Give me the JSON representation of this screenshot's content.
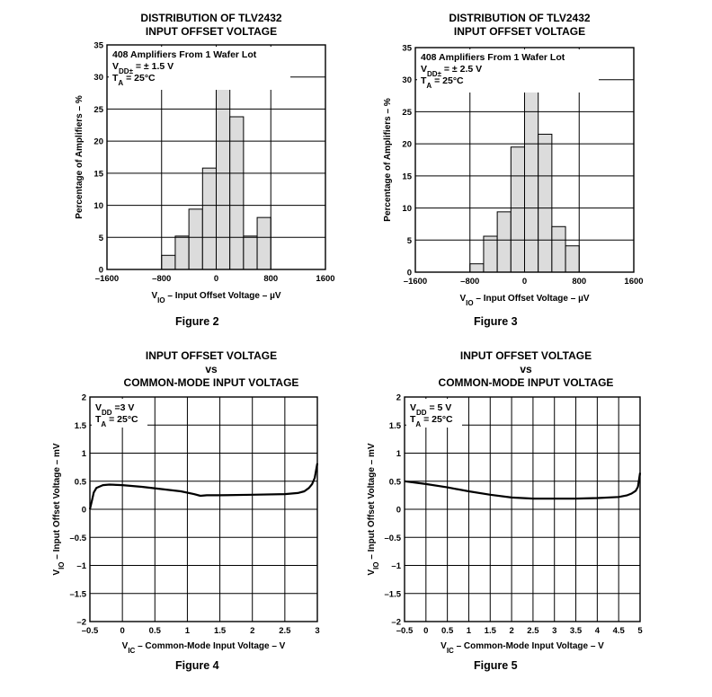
{
  "figures": [
    {
      "title_lines": [
        "DISTRIBUTION OF TLV2432",
        "INPUT OFFSET VOLTAGE"
      ],
      "caption": "Figure 2",
      "annotation_lines": [
        "408 Amplifiers From 1 Wafer Lot",
        "VDD± = ± 1.5 V",
        "TA = 25°C"
      ],
      "chart_data": {
        "type": "bar",
        "title": "DISTRIBUTION OF TLV2432 INPUT OFFSET VOLTAGE",
        "xlabel": "VIO – Input Offset Voltage – µV",
        "ylabel": "Percentage of Amplifiers – %",
        "xlim": [
          -1600,
          1600
        ],
        "ylim": [
          0,
          35
        ],
        "xticks": [
          "–1600",
          "–800",
          "0",
          "800",
          "1600"
        ],
        "yticks": [
          "0",
          "5",
          "10",
          "15",
          "20",
          "25",
          "30",
          "35"
        ],
        "bin_edges": [
          -800,
          -600,
          -400,
          -200,
          0,
          200,
          400,
          600,
          800
        ],
        "values": [
          2.2,
          5.2,
          9.4,
          15.8,
          30.7,
          23.8,
          5.2,
          8.1
        ],
        "grid": true
      }
    },
    {
      "title_lines": [
        "DISTRIBUTION OF TLV2432",
        "INPUT OFFSET VOLTAGE"
      ],
      "caption": "Figure 3",
      "annotation_lines": [
        "408 Amplifiers From 1 Wafer Lot",
        "VDD± = ± 2.5 V",
        "TA = 25°C"
      ],
      "chart_data": {
        "type": "bar",
        "title": "DISTRIBUTION OF TLV2432 INPUT OFFSET VOLTAGE",
        "xlabel": "VIO – Input Offset Voltage – µV",
        "ylabel": "Percentage of Amplifiers – %",
        "xlim": [
          -1600,
          1600
        ],
        "ylim": [
          0,
          35
        ],
        "xticks": [
          "–1600",
          "–800",
          "0",
          "800",
          "1600"
        ],
        "yticks": [
          "0",
          "5",
          "10",
          "15",
          "20",
          "25",
          "30",
          "35"
        ],
        "bin_edges": [
          -800,
          -600,
          -400,
          -200,
          0,
          200,
          400,
          600,
          800
        ],
        "values": [
          1.3,
          5.6,
          9.4,
          19.5,
          30.3,
          21.5,
          7.1,
          4.1
        ],
        "grid": true
      }
    },
    {
      "title_lines": [
        "INPUT OFFSET VOLTAGE",
        "vs",
        "COMMON-MODE INPUT VOLTAGE"
      ],
      "caption": "Figure 4",
      "annotation_lines": [
        "VDD =3 V",
        "TA = 25°C"
      ],
      "chart_data": {
        "type": "line",
        "title": "INPUT OFFSET VOLTAGE vs COMMON-MODE INPUT VOLTAGE",
        "xlabel": "VIC – Common-Mode Input Voltage – V",
        "ylabel": "VIO – Input Offset Voltage – mV",
        "xlim": [
          -0.5,
          3
        ],
        "ylim": [
          -2,
          2
        ],
        "xticks": [
          "–0.5",
          "0",
          "0.5",
          "1",
          "1.5",
          "2",
          "2.5",
          "3"
        ],
        "yticks": [
          "–2",
          "–1.5",
          "–1",
          "–0.5",
          "0",
          "0.5",
          "1",
          "1.5",
          "2"
        ],
        "grid": true,
        "series": [
          {
            "x": [
              -0.5,
              -0.47,
              -0.44,
              -0.4,
              -0.3,
              -0.2,
              0,
              0.3,
              0.6,
              0.9,
              1.1,
              1.2,
              1.3,
              1.5,
              2.0,
              2.5,
              2.7,
              2.8,
              2.87,
              2.92,
              2.96,
              3.0
            ],
            "y": [
              0.0,
              0.15,
              0.3,
              0.38,
              0.43,
              0.44,
              0.43,
              0.4,
              0.36,
              0.32,
              0.27,
              0.24,
              0.25,
              0.25,
              0.26,
              0.27,
              0.29,
              0.32,
              0.38,
              0.45,
              0.56,
              0.82
            ]
          }
        ]
      }
    },
    {
      "title_lines": [
        "INPUT OFFSET VOLTAGE",
        "vs",
        "COMMON-MODE INPUT VOLTAGE"
      ],
      "caption": "Figure 5",
      "annotation_lines": [
        "VDD = 5 V",
        "TA = 25°C"
      ],
      "chart_data": {
        "type": "line",
        "title": "INPUT OFFSET VOLTAGE vs COMMON-MODE INPUT VOLTAGE",
        "xlabel": "VIC – Common-Mode Input Voltage – V",
        "ylabel": "VIO – Input Offset Voltage – mV",
        "xlim": [
          -0.5,
          5
        ],
        "ylim": [
          -2,
          2
        ],
        "xticks": [
          "–0.5",
          "0",
          "0.5",
          "1",
          "1.5",
          "2",
          "2.5",
          "3",
          "3.5",
          "4",
          "4.5",
          "5"
        ],
        "yticks": [
          "–2",
          "–1.5",
          "–1",
          "–0.5",
          "0",
          "0.5",
          "1",
          "1.5",
          "2"
        ],
        "grid": true,
        "series": [
          {
            "x": [
              -0.5,
              -0.2,
              0,
              0.5,
              1.0,
              1.5,
              2.0,
              2.5,
              3.0,
              3.5,
              4.0,
              4.5,
              4.7,
              4.8,
              4.9,
              4.95,
              5.0
            ],
            "y": [
              0.5,
              0.47,
              0.45,
              0.39,
              0.32,
              0.26,
              0.21,
              0.19,
              0.19,
              0.19,
              0.2,
              0.22,
              0.25,
              0.28,
              0.33,
              0.4,
              0.65
            ]
          }
        ]
      }
    }
  ]
}
